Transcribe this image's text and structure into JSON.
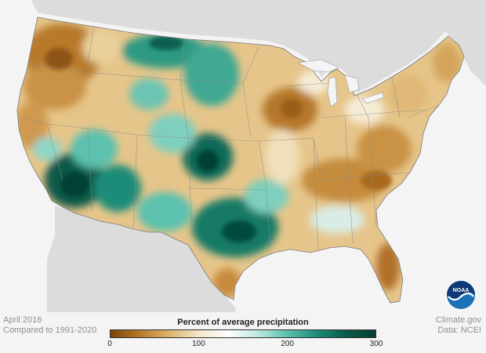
{
  "map": {
    "title": "April 2016",
    "subtitle": "Compared to 1991-2020",
    "credit": "Climate.gov",
    "source": "Data: NCEI",
    "logo_text": "NOAA"
  },
  "legend": {
    "title": "Percent of average precipitation",
    "ticks": [
      {
        "value": 0,
        "label": "0"
      },
      {
        "value": 100,
        "label": "100"
      },
      {
        "value": 200,
        "label": "200"
      },
      {
        "value": 300,
        "label": "300"
      }
    ],
    "range": [
      0,
      300
    ],
    "colors": [
      "#7a4406",
      "#b87a2a",
      "#ddb46e",
      "#f3e7c8",
      "#ffffff",
      "#bfe8e0",
      "#5cc1ae",
      "#1d8c78",
      "#0a5a4a",
      "#053f34"
    ]
  },
  "colors": {
    "dry": "#b0782a",
    "dry_extreme": "#7a4406",
    "wet": "#1d8c78",
    "wet_extreme": "#064a3d",
    "land_outside": "#dcdcdc",
    "ocean": "#f4f4f4",
    "noaa_blue": "#1a73b9"
  }
}
